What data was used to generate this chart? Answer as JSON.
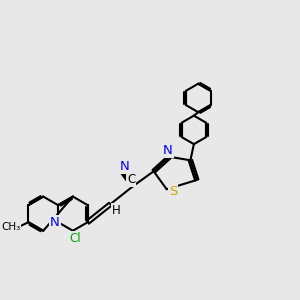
{
  "background_color": "#e8e8e8",
  "bond_color": "#000000",
  "bond_width": 1.5,
  "atom_colors": {
    "N": "#0000ff",
    "S": "#ccaa00",
    "Cl": "#00aa00",
    "C": "#000000",
    "H": "#000000"
  },
  "font_size": 8.5
}
